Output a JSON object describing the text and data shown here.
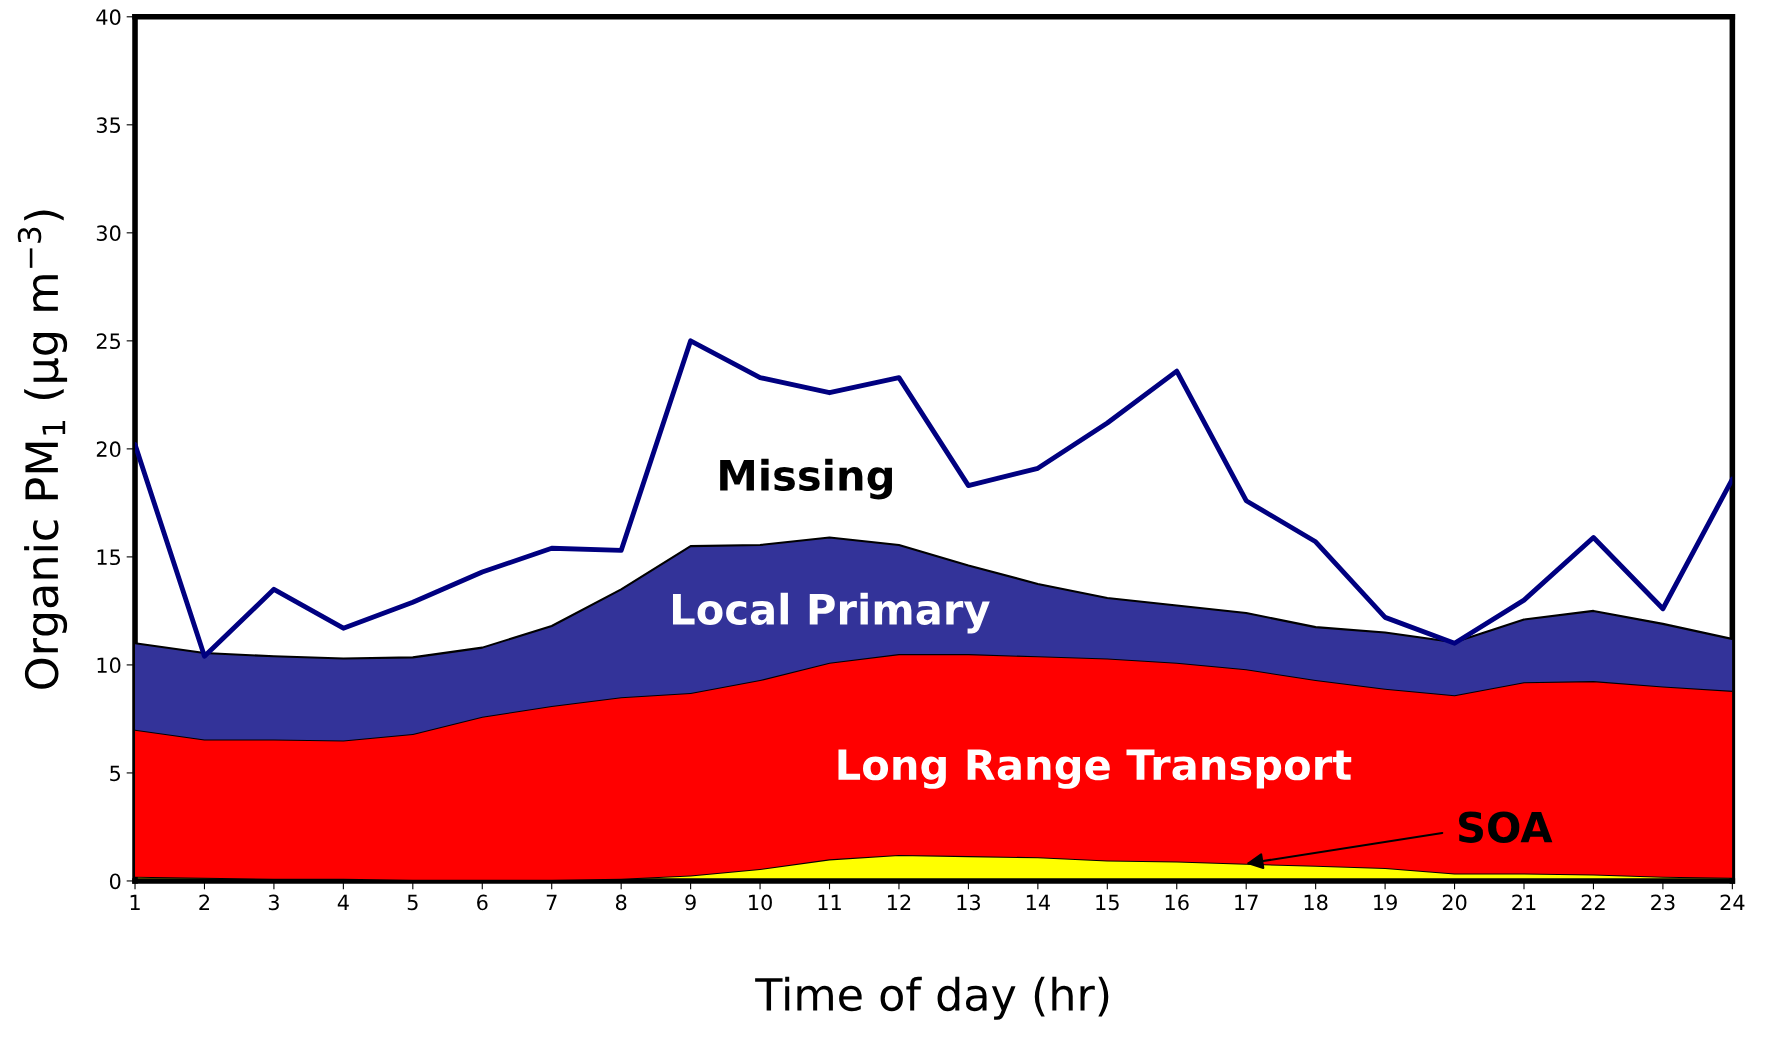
{
  "chart_data": {
    "type": "area",
    "stacked": true,
    "xlabel": "Time of day (hr)",
    "ylabel": "Organic PM$_{1}$ (µg m$^{−3}$)",
    "x": [
      1,
      2,
      3,
      4,
      5,
      6,
      7,
      8,
      9,
      10,
      11,
      12,
      13,
      14,
      15,
      16,
      17,
      18,
      19,
      20,
      21,
      22,
      23,
      24
    ],
    "xlim": [
      1,
      24
    ],
    "xticks": [
      1,
      2,
      3,
      4,
      5,
      6,
      7,
      8,
      9,
      10,
      11,
      12,
      13,
      14,
      15,
      16,
      17,
      18,
      19,
      20,
      21,
      22,
      23,
      24
    ],
    "ylim": [
      0,
      40
    ],
    "yticks": [
      0,
      5,
      10,
      15,
      20,
      25,
      30,
      35,
      40
    ],
    "grid": false,
    "series": [
      {
        "color": "#ffff00",
        "values": [
          0.2,
          0.15,
          0.1,
          0.1,
          0.05,
          0.05,
          0.05,
          0.1,
          0.25,
          0.55,
          1.0,
          1.2,
          1.15,
          1.1,
          0.95,
          0.9,
          0.8,
          0.7,
          0.6,
          0.35,
          0.35,
          0.3,
          0.2,
          0.15
        ]
      },
      {
        "color": "#ff0000",
        "values": [
          6.8,
          6.4,
          6.45,
          6.4,
          6.75,
          7.55,
          8.05,
          8.4,
          8.45,
          8.75,
          9.1,
          9.3,
          9.35,
          9.3,
          9.35,
          9.2,
          9.0,
          8.6,
          8.3,
          8.25,
          8.85,
          8.95,
          8.8,
          8.65
        ]
      },
      {
        "color": "#333399",
        "values": [
          4.0,
          4.0,
          3.85,
          3.8,
          3.55,
          3.2,
          3.7,
          5.0,
          6.8,
          6.25,
          5.8,
          5.05,
          4.1,
          3.35,
          2.8,
          2.65,
          2.6,
          2.45,
          2.6,
          2.45,
          2.9,
          3.25,
          2.9,
          2.4
        ]
      },
      {
        "type": "line",
        "color": "#000080",
        "values": [
          20.2,
          10.4,
          13.5,
          11.7,
          12.9,
          14.3,
          15.4,
          15.3,
          25.0,
          23.3,
          22.6,
          23.3,
          18.3,
          19.1,
          21.2,
          23.6,
          17.6,
          15.7,
          12.2,
          11.0,
          13.0,
          15.9,
          12.6,
          18.6
        ]
      }
    ],
    "annotations": [
      "Missing",
      "Local Primary",
      "Long Range Transport",
      {
        "text": "SOA",
        "x": 17,
        "y": 0.8
      }
    ]
  }
}
